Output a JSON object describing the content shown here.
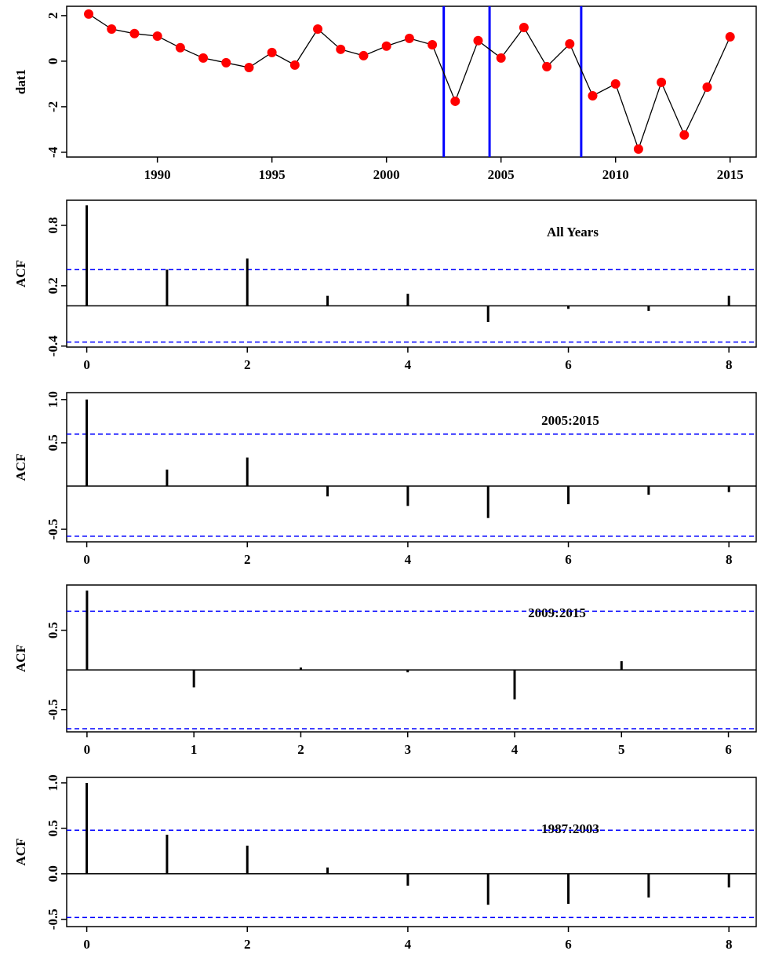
{
  "chart_data": [
    {
      "type": "line",
      "y_label": "dat1",
      "x": [
        1987,
        1988,
        1989,
        1990,
        1991,
        1992,
        1993,
        1994,
        1995,
        1996,
        1997,
        1998,
        1999,
        2000,
        2001,
        2002,
        2003,
        2004,
        2005,
        2006,
        2007,
        2008,
        2009,
        2010,
        2011,
        2012,
        2013,
        2014,
        2015
      ],
      "values": [
        2.07,
        1.41,
        1.21,
        1.1,
        0.59,
        0.14,
        -0.07,
        -0.28,
        0.38,
        -0.17,
        1.41,
        0.52,
        0.24,
        0.66,
        1.0,
        0.72,
        -1.76,
        0.9,
        0.14,
        1.48,
        -0.24,
        0.76,
        -1.52,
        -1.0,
        -3.86,
        -0.93,
        -3.24,
        -1.14,
        1.07
      ],
      "color": "#000000",
      "point_color": "#ff0000",
      "vlines": [
        2002.5,
        2004.5,
        2008.5
      ],
      "vline_color": "#0000ff",
      "xlim": [
        1986.04,
        2016.14
      ],
      "xticks": [
        1990,
        1995,
        2000,
        2005,
        2010,
        2015
      ],
      "ylim": [
        -4.21,
        2.41
      ],
      "yticks": [
        -4,
        -2,
        0,
        2
      ]
    },
    {
      "type": "bar",
      "y_label": "ACF",
      "annotation": "All Years",
      "x": [
        0,
        1,
        2,
        3,
        4,
        5,
        6,
        7,
        8
      ],
      "values": [
        1.0,
        0.36,
        0.47,
        0.1,
        0.12,
        -0.16,
        -0.03,
        -0.05,
        0.1
      ],
      "color": "#000000",
      "hlines": [
        0.36,
        -0.36
      ],
      "hline_color": "#0000ff",
      "xlim": [
        -0.25,
        8.34
      ],
      "xticks": [
        0,
        2,
        4,
        6,
        8
      ],
      "ylim": [
        -0.41,
        1.05
      ],
      "yticks": [
        -0.4,
        0.2,
        0.8
      ]
    },
    {
      "type": "bar",
      "y_label": "ACF",
      "annotation": "2005:2015",
      "x": [
        0,
        1,
        2,
        3,
        4,
        5,
        6,
        7,
        8
      ],
      "values": [
        1.0,
        0.19,
        0.33,
        -0.12,
        -0.23,
        -0.37,
        -0.21,
        -0.1,
        -0.07
      ],
      "color": "#000000",
      "hlines": [
        0.6,
        -0.58
      ],
      "hline_color": "#0000ff",
      "xlim": [
        -0.25,
        8.34
      ],
      "xticks": [
        0,
        2,
        4,
        6,
        8
      ],
      "ylim": [
        -0.645,
        1.08
      ],
      "yticks": [
        -0.5,
        0.5,
        {
          "value": 1,
          "label": "1.0"
        }
      ]
    },
    {
      "type": "bar",
      "y_label": "ACF",
      "annotation": "2009:2015",
      "x": [
        0,
        1,
        2,
        3,
        4,
        5
      ],
      "values": [
        1.0,
        -0.22,
        0.03,
        -0.03,
        -0.37,
        0.11
      ],
      "color": "#000000",
      "hlines": [
        0.74,
        -0.74
      ],
      "hline_color": "#0000ff",
      "xlim": [
        -0.19,
        6.26
      ],
      "xticks": [
        0,
        1,
        2,
        3,
        4,
        5,
        6
      ],
      "ylim": [
        -0.78,
        1.07
      ],
      "yticks": [
        -0.5,
        0.5
      ]
    },
    {
      "type": "bar",
      "y_label": "ACF",
      "annotation": "1987:2003",
      "x": [
        0,
        1,
        2,
        3,
        4,
        5,
        6,
        7,
        8
      ],
      "values": [
        1.0,
        0.43,
        0.31,
        0.07,
        -0.13,
        -0.34,
        -0.33,
        -0.26,
        -0.15
      ],
      "color": "#000000",
      "hlines": [
        0.48,
        -0.48
      ],
      "hline_color": "#0000ff",
      "xlim": [
        -0.25,
        8.34
      ],
      "xticks": [
        0,
        2,
        4,
        6,
        8
      ],
      "ylim": [
        -0.58,
        1.06
      ],
      "yticks": [
        -0.5,
        {
          "value": 0,
          "label": "0.0"
        },
        0.5,
        {
          "value": 1,
          "label": "1.0"
        }
      ]
    }
  ]
}
